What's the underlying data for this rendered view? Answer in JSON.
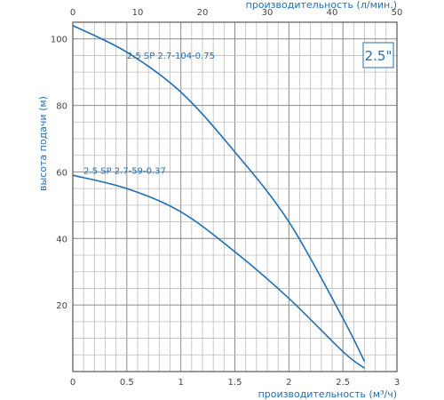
{
  "chart_data": {
    "type": "line",
    "badge": "2.5\"",
    "xlabel_bottom": "производительность (м³/ч)",
    "xlabel_top": "производительность (л/мин.)",
    "ylabel": "высота подачи (м)",
    "x_range_m3h": [
      0,
      3
    ],
    "x_range_lmin": [
      0,
      50
    ],
    "y_range": [
      0,
      105
    ],
    "x_ticks_bottom": [
      "0",
      "0.5",
      "1",
      "1.5",
      "2",
      "2.5",
      "3"
    ],
    "x_ticks_top": [
      "0",
      "10",
      "20",
      "30",
      "40",
      "50"
    ],
    "y_ticks": [
      "20",
      "40",
      "60",
      "80",
      "100"
    ],
    "grid": true,
    "line_color": "#1f6fb2",
    "series": [
      {
        "name": "2.5 SP 2.7-104-0.75",
        "x": [
          0,
          0.5,
          1.0,
          1.5,
          2.0,
          2.5,
          2.7
        ],
        "y": [
          104,
          96,
          84,
          66,
          45,
          16,
          3
        ]
      },
      {
        "name": "2.5 SP 2.7-59-0.37",
        "x": [
          0,
          0.5,
          1.0,
          1.5,
          2.0,
          2.5,
          2.7
        ],
        "y": [
          59,
          55,
          48,
          36,
          22,
          6,
          1
        ]
      }
    ]
  }
}
